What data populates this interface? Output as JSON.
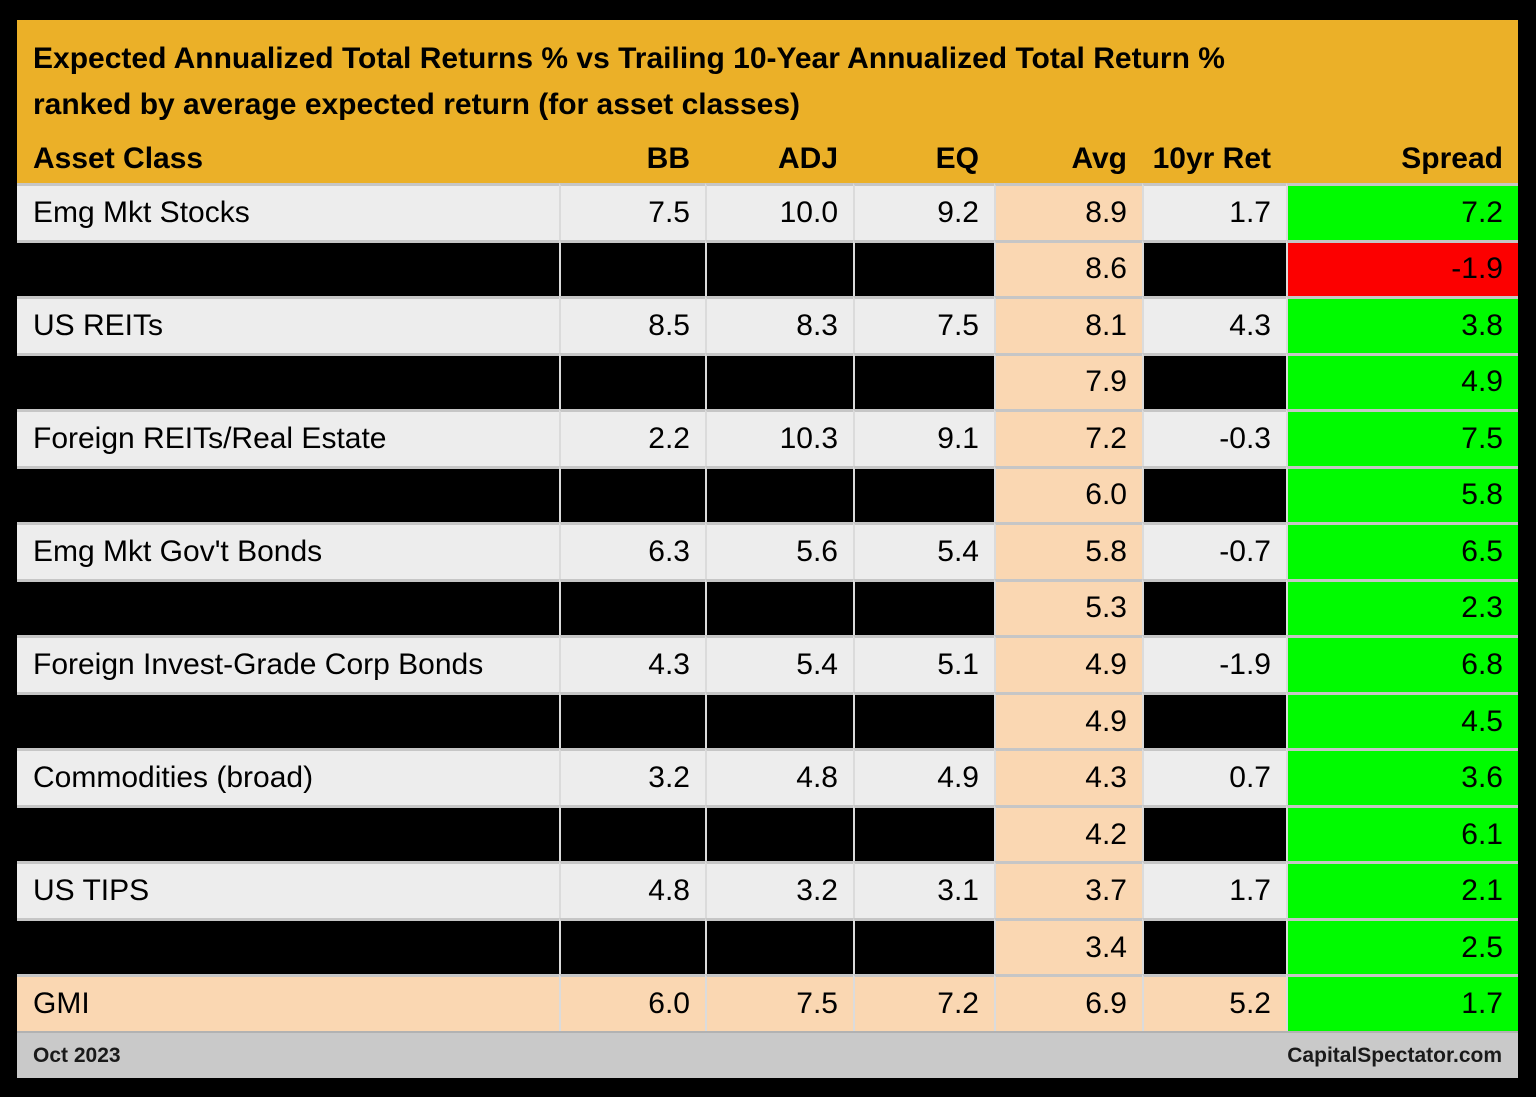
{
  "chart_data": {
    "type": "table",
    "title": "Expected Annualized Total Returns % vs Trailing 10-Year Annualized Total Return %",
    "subtitle": "ranked by average expected return (for asset classes)",
    "columns": [
      "Asset Class",
      "BB",
      "ADJ",
      "EQ",
      "Avg",
      "10yr Ret",
      "Spread"
    ],
    "rows": [
      {
        "asset_class": "Emg Mkt Stocks",
        "bb": "7.5",
        "adj": "10.0",
        "eq": "9.2",
        "avg": "8.9",
        "ret_10yr": "1.7",
        "spread": "7.2",
        "redacted": false,
        "spread_color": "green"
      },
      {
        "asset_class": "",
        "bb": "",
        "adj": "",
        "eq": "",
        "avg": "8.6",
        "ret_10yr": "",
        "spread": "-1.9",
        "redacted": true,
        "spread_color": "red"
      },
      {
        "asset_class": "US REITs",
        "bb": "8.5",
        "adj": "8.3",
        "eq": "7.5",
        "avg": "8.1",
        "ret_10yr": "4.3",
        "spread": "3.8",
        "redacted": false,
        "spread_color": "green"
      },
      {
        "asset_class": "",
        "bb": "",
        "adj": "",
        "eq": "",
        "avg": "7.9",
        "ret_10yr": "",
        "spread": "4.9",
        "redacted": true,
        "spread_color": "green"
      },
      {
        "asset_class": "Foreign REITs/Real Estate",
        "bb": "2.2",
        "adj": "10.3",
        "eq": "9.1",
        "avg": "7.2",
        "ret_10yr": "-0.3",
        "spread": "7.5",
        "redacted": false,
        "spread_color": "green"
      },
      {
        "asset_class": "",
        "bb": "",
        "adj": "",
        "eq": "",
        "avg": "6.0",
        "ret_10yr": "",
        "spread": "5.8",
        "redacted": true,
        "spread_color": "green"
      },
      {
        "asset_class": "Emg Mkt Gov't Bonds",
        "bb": "6.3",
        "adj": "5.6",
        "eq": "5.4",
        "avg": "5.8",
        "ret_10yr": "-0.7",
        "spread": "6.5",
        "redacted": false,
        "spread_color": "green"
      },
      {
        "asset_class": "",
        "bb": "",
        "adj": "",
        "eq": "",
        "avg": "5.3",
        "ret_10yr": "",
        "spread": "2.3",
        "redacted": true,
        "spread_color": "green"
      },
      {
        "asset_class": "Foreign Invest-Grade Corp Bonds",
        "bb": "4.3",
        "adj": "5.4",
        "eq": "5.1",
        "avg": "4.9",
        "ret_10yr": "-1.9",
        "spread": "6.8",
        "redacted": false,
        "spread_color": "green"
      },
      {
        "asset_class": "",
        "bb": "",
        "adj": "",
        "eq": "",
        "avg": "4.9",
        "ret_10yr": "",
        "spread": "4.5",
        "redacted": true,
        "spread_color": "green"
      },
      {
        "asset_class": "Commodities (broad)",
        "bb": "3.2",
        "adj": "4.8",
        "eq": "4.9",
        "avg": "4.3",
        "ret_10yr": "0.7",
        "spread": "3.6",
        "redacted": false,
        "spread_color": "green"
      },
      {
        "asset_class": "",
        "bb": "",
        "adj": "",
        "eq": "",
        "avg": "4.2",
        "ret_10yr": "",
        "spread": "6.1",
        "redacted": true,
        "spread_color": "green"
      },
      {
        "asset_class": "US TIPS",
        "bb": "4.8",
        "adj": "3.2",
        "eq": "3.1",
        "avg": "3.7",
        "ret_10yr": "1.7",
        "spread": "2.1",
        "redacted": false,
        "spread_color": "green"
      },
      {
        "asset_class": "",
        "bb": "",
        "adj": "",
        "eq": "",
        "avg": "3.4",
        "ret_10yr": "",
        "spread": "2.5",
        "redacted": true,
        "spread_color": "green"
      },
      {
        "asset_class": "GMI",
        "bb": "6.0",
        "adj": "7.5",
        "eq": "7.2",
        "avg": "6.9",
        "ret_10yr": "5.2",
        "spread": "1.7",
        "redacted": false,
        "spread_color": "green",
        "highlight": "peach"
      }
    ],
    "layout": {
      "grid": "cell-borders",
      "legend": "none",
      "avg_column_highlight": "peach",
      "spread_column_highlight": "green-positive-red-negative"
    }
  },
  "footer": {
    "left": "Oct 2023",
    "right": "CapitalSpectator.com"
  },
  "colors": {
    "gold": "#EBB028",
    "row_gray": "#EDEDED",
    "peach": "#FAD7B2",
    "green": "#00FB00",
    "red": "#FC0000",
    "footer_gray": "#C9C9C9",
    "redacted_black": "#000000",
    "divider_v": "#DBDBDB",
    "divider_h": "#C6C6C6"
  }
}
